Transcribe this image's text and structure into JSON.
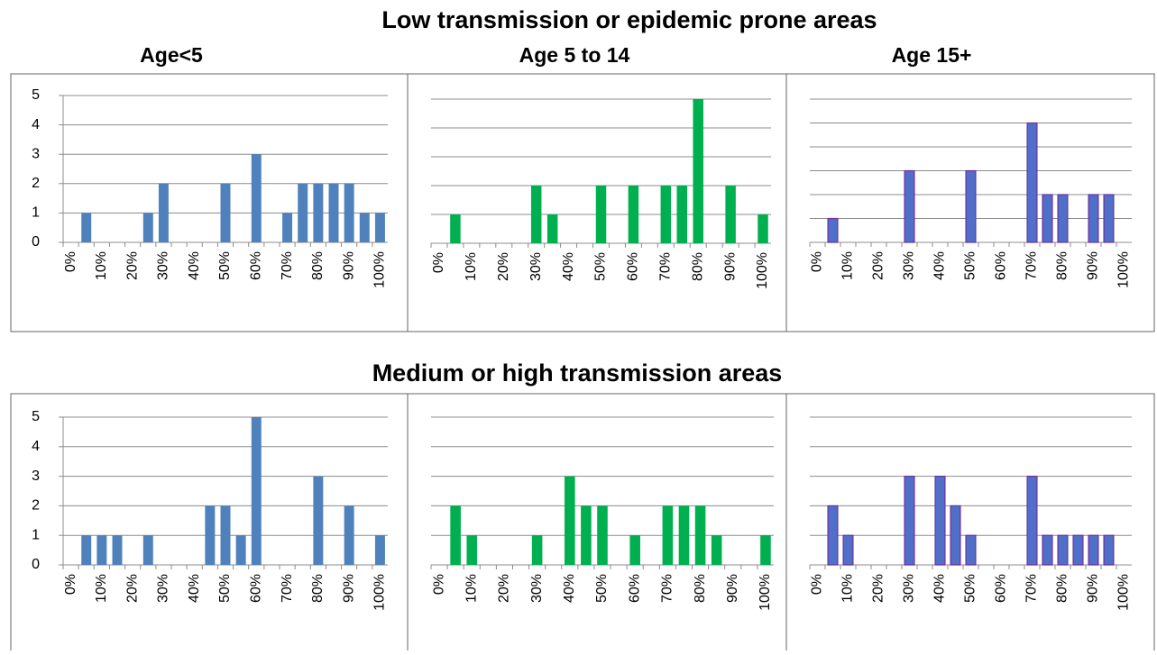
{
  "titles": {
    "top_row": "Low transmission or epidemic prone areas",
    "bottom_row": "Medium or high transmission areas",
    "columns": [
      "Age<5",
      "Age 5 to 14",
      "Age 15+"
    ]
  },
  "chart_data": [
    {
      "type": "bar",
      "color": "#4f81bd",
      "ylim": [
        0,
        5
      ],
      "yticks": [
        0,
        1,
        2,
        3,
        4,
        5
      ],
      "show_ytick_labels": true,
      "grid": true,
      "categories": [
        "0%",
        null,
        "10%",
        null,
        "20%",
        null,
        "30%",
        null,
        "40%",
        null,
        "50%",
        null,
        "60%",
        null,
        "70%",
        null,
        "80%",
        null,
        "90%",
        null,
        "100%"
      ],
      "values": [
        0,
        1,
        0,
        0,
        0,
        1,
        2,
        0,
        0,
        0,
        2,
        0,
        3,
        0,
        1,
        2,
        2,
        2,
        2,
        1,
        1
      ]
    },
    {
      "type": "bar",
      "color": "#00b050",
      "ylim": [
        0,
        5
      ],
      "yticks": [
        0,
        1,
        2,
        3,
        4,
        5
      ],
      "show_ytick_labels": false,
      "grid": true,
      "categories": [
        "0%",
        null,
        "10%",
        null,
        "20%",
        null,
        "30%",
        null,
        "40%",
        null,
        "50%",
        null,
        "60%",
        null,
        "70%",
        null,
        "80%",
        null,
        "90%",
        null,
        "100%"
      ],
      "values": [
        0,
        1,
        0,
        0,
        0,
        0,
        2,
        1,
        0,
        0,
        2,
        0,
        2,
        0,
        2,
        2,
        5,
        0,
        2,
        0,
        1
      ]
    },
    {
      "type": "bar",
      "color": "#4f6fc8",
      "stroke": "#7030a0",
      "ylim": [
        0,
        6
      ],
      "yticks": [
        0,
        1,
        2,
        3,
        4,
        5,
        6
      ],
      "show_ytick_labels": false,
      "grid": true,
      "categories": [
        "0%",
        null,
        "10%",
        null,
        "20%",
        null,
        "30%",
        null,
        "40%",
        null,
        "50%",
        null,
        "60%",
        null,
        "70%",
        null,
        "80%",
        null,
        "90%",
        null,
        "100%"
      ],
      "values": [
        0,
        1,
        0,
        0,
        0,
        0,
        3,
        0,
        0,
        0,
        3,
        0,
        0,
        0,
        5,
        2,
        2,
        0,
        2,
        2,
        0
      ]
    },
    {
      "type": "bar",
      "color": "#4f81bd",
      "ylim": [
        0,
        5
      ],
      "yticks": [
        0,
        1,
        2,
        3,
        4,
        5
      ],
      "show_ytick_labels": true,
      "grid": true,
      "categories": [
        "0%",
        null,
        "10%",
        null,
        "20%",
        null,
        "30%",
        null,
        "40%",
        null,
        "50%",
        null,
        "60%",
        null,
        "70%",
        null,
        "80%",
        null,
        "90%",
        null,
        "100%"
      ],
      "values": [
        0,
        1,
        1,
        1,
        0,
        1,
        0,
        0,
        0,
        2,
        2,
        1,
        5,
        0,
        0,
        0,
        3,
        0,
        2,
        0,
        1
      ]
    },
    {
      "type": "bar",
      "color": "#00b050",
      "ylim": [
        0,
        5
      ],
      "yticks": [
        0,
        1,
        2,
        3,
        4,
        5
      ],
      "show_ytick_labels": false,
      "grid": true,
      "categories": [
        "0%",
        null,
        "10%",
        null,
        "20%",
        null,
        "30%",
        null,
        "40%",
        null,
        "50%",
        null,
        "60%",
        null,
        "70%",
        null,
        "80%",
        null,
        "90%",
        null,
        "100%"
      ],
      "values": [
        0,
        2,
        1,
        0,
        0,
        0,
        1,
        0,
        3,
        2,
        2,
        0,
        1,
        0,
        2,
        2,
        2,
        1,
        0,
        0,
        1
      ]
    },
    {
      "type": "bar",
      "color": "#4f6fc8",
      "stroke": "#7030a0",
      "ylim": [
        0,
        5
      ],
      "yticks": [
        0,
        1,
        2,
        3,
        4,
        5
      ],
      "show_ytick_labels": false,
      "grid": true,
      "categories": [
        "0%",
        null,
        "10%",
        null,
        "20%",
        null,
        "30%",
        null,
        "40%",
        null,
        "50%",
        null,
        "60%",
        null,
        "70%",
        null,
        "80%",
        null,
        "90%",
        null,
        "100%"
      ],
      "values": [
        0,
        2,
        1,
        0,
        0,
        0,
        3,
        0,
        3,
        2,
        1,
        0,
        0,
        0,
        3,
        1,
        1,
        1,
        1,
        1,
        0
      ]
    }
  ]
}
